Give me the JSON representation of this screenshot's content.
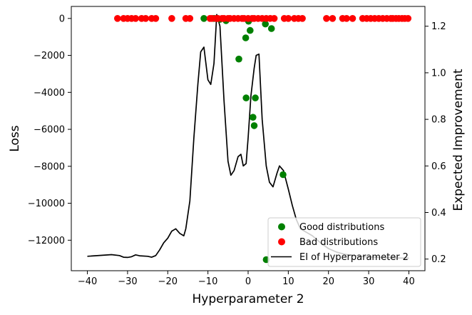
{
  "chart_data": {
    "type": "scatter",
    "xlabel": "Hyperparameter 2",
    "ylabel": "Loss",
    "y2label": "Expected Improvement",
    "xlim": [
      -44,
      44
    ],
    "ylim": [
      -13650,
      650
    ],
    "y2lim": [
      0.15,
      1.285
    ],
    "grid": false,
    "legend_position": "lower-right",
    "x_ticks": [
      -40,
      -30,
      -20,
      -10,
      0,
      10,
      20,
      30,
      40
    ],
    "x_tick_labels": [
      "−40",
      "−30",
      "−20",
      "−10",
      "0",
      "10",
      "20",
      "30",
      "40"
    ],
    "y_ticks": [
      0,
      -2000,
      -4000,
      -6000,
      -8000,
      -10000,
      -12000
    ],
    "y_tick_labels": [
      "0",
      "−2000",
      "−4000",
      "−6000",
      "−8000",
      "−10000",
      "−12000"
    ],
    "y2_ticks": [
      0.2,
      0.4,
      0.6,
      0.8,
      1.0,
      1.2
    ],
    "y2_tick_labels": [
      "0.2",
      "0.4",
      "0.6",
      "0.8",
      "1.0",
      "1.2"
    ],
    "series": [
      {
        "name": "Good distributions",
        "kind": "scatter",
        "axis": "left",
        "color": "#008000",
        "points": [
          {
            "x": -11,
            "y": 0
          },
          {
            "x": -8.5,
            "y": 0
          },
          {
            "x": -7,
            "y": -50
          },
          {
            "x": -5.5,
            "y": -120
          },
          {
            "x": -2.3,
            "y": -2200
          },
          {
            "x": -0.6,
            "y": -1050
          },
          {
            "x": 0.1,
            "y": -150
          },
          {
            "x": 0.5,
            "y": -650
          },
          {
            "x": 4.3,
            "y": -300
          },
          {
            "x": 5.8,
            "y": -550
          },
          {
            "x": -0.5,
            "y": -4300
          },
          {
            "x": 1.8,
            "y": -4300
          },
          {
            "x": 1.2,
            "y": -5350
          },
          {
            "x": 1.5,
            "y": -5800
          },
          {
            "x": 8.7,
            "y": -8450
          },
          {
            "x": 4.5,
            "y": -13050
          }
        ]
      },
      {
        "name": "Bad distributions",
        "kind": "scatter",
        "axis": "left",
        "color": "#ff0000",
        "points": [
          {
            "x": -32.5,
            "y": 0
          },
          {
            "x": -31,
            "y": 0
          },
          {
            "x": -30,
            "y": 0
          },
          {
            "x": -29,
            "y": 0
          },
          {
            "x": -28,
            "y": 0
          },
          {
            "x": -26.5,
            "y": 0
          },
          {
            "x": -25.5,
            "y": 0
          },
          {
            "x": -24,
            "y": 0
          },
          {
            "x": -23,
            "y": 0
          },
          {
            "x": -19,
            "y": 0
          },
          {
            "x": -15.5,
            "y": 0
          },
          {
            "x": -14.5,
            "y": 0
          },
          {
            "x": -9.5,
            "y": 0
          },
          {
            "x": -9,
            "y": 0
          },
          {
            "x": -8,
            "y": 0
          },
          {
            "x": -7.5,
            "y": 0
          },
          {
            "x": -6.5,
            "y": 0
          },
          {
            "x": -6,
            "y": 0
          },
          {
            "x": -5,
            "y": 0
          },
          {
            "x": -4.5,
            "y": 0
          },
          {
            "x": -3.5,
            "y": 0
          },
          {
            "x": -2.5,
            "y": 0
          },
          {
            "x": -1.5,
            "y": 0
          },
          {
            "x": -1,
            "y": 0
          },
          {
            "x": 0,
            "y": 0
          },
          {
            "x": 1,
            "y": 0
          },
          {
            "x": 1.5,
            "y": 0
          },
          {
            "x": 2.5,
            "y": 0
          },
          {
            "x": 3.5,
            "y": 0
          },
          {
            "x": 4.5,
            "y": 0
          },
          {
            "x": 5.5,
            "y": 0
          },
          {
            "x": 6.5,
            "y": 0
          },
          {
            "x": 9,
            "y": 0
          },
          {
            "x": 10,
            "y": 0
          },
          {
            "x": 11.5,
            "y": 0
          },
          {
            "x": 12.5,
            "y": 0
          },
          {
            "x": 13.5,
            "y": 0
          },
          {
            "x": 19.5,
            "y": 0
          },
          {
            "x": 21,
            "y": 0
          },
          {
            "x": 23.5,
            "y": 0
          },
          {
            "x": 24.5,
            "y": 0
          },
          {
            "x": 26,
            "y": 0
          },
          {
            "x": 28.5,
            "y": 0
          },
          {
            "x": 29.5,
            "y": 0
          },
          {
            "x": 30.5,
            "y": 0
          },
          {
            "x": 31.5,
            "y": 0
          },
          {
            "x": 32.5,
            "y": 0
          },
          {
            "x": 33.5,
            "y": 0
          },
          {
            "x": 34.5,
            "y": 0
          },
          {
            "x": 35.5,
            "y": 0
          },
          {
            "x": 36,
            "y": 0
          },
          {
            "x": 36.8,
            "y": 0
          },
          {
            "x": 37.5,
            "y": 0
          },
          {
            "x": 38.3,
            "y": 0
          },
          {
            "x": 39,
            "y": 0
          },
          {
            "x": 39.8,
            "y": 0
          }
        ]
      },
      {
        "name": "EI of Hyperparameter 2",
        "kind": "line",
        "axis": "right",
        "color": "#000000",
        "points": [
          {
            "x": -40,
            "y": 0.212
          },
          {
            "x": -34,
            "y": 0.219
          },
          {
            "x": -32,
            "y": 0.215
          },
          {
            "x": -31,
            "y": 0.208
          },
          {
            "x": -30,
            "y": 0.207
          },
          {
            "x": -29,
            "y": 0.21
          },
          {
            "x": -28,
            "y": 0.218
          },
          {
            "x": -27,
            "y": 0.214
          },
          {
            "x": -25,
            "y": 0.212
          },
          {
            "x": -24,
            "y": 0.208
          },
          {
            "x": -23,
            "y": 0.215
          },
          {
            "x": -22,
            "y": 0.24
          },
          {
            "x": -21,
            "y": 0.27
          },
          {
            "x": -20,
            "y": 0.29
          },
          {
            "x": -19,
            "y": 0.32
          },
          {
            "x": -18,
            "y": 0.33
          },
          {
            "x": -17,
            "y": 0.31
          },
          {
            "x": -16,
            "y": 0.3
          },
          {
            "x": -15.5,
            "y": 0.33
          },
          {
            "x": -14.5,
            "y": 0.45
          },
          {
            "x": -13.5,
            "y": 0.72
          },
          {
            "x": -12.5,
            "y": 0.95
          },
          {
            "x": -11.8,
            "y": 1.09
          },
          {
            "x": -11,
            "y": 1.11
          },
          {
            "x": -10,
            "y": 0.97
          },
          {
            "x": -9.3,
            "y": 0.95
          },
          {
            "x": -8.5,
            "y": 1.04
          },
          {
            "x": -7.8,
            "y": 1.25
          },
          {
            "x": -7,
            "y": 1.2
          },
          {
            "x": -6,
            "y": 0.88
          },
          {
            "x": -5,
            "y": 0.62
          },
          {
            "x": -4.3,
            "y": 0.56
          },
          {
            "x": -3.5,
            "y": 0.58
          },
          {
            "x": -2.5,
            "y": 0.64
          },
          {
            "x": -1.8,
            "y": 0.65
          },
          {
            "x": -1.2,
            "y": 0.6
          },
          {
            "x": -0.5,
            "y": 0.61
          },
          {
            "x": 0,
            "y": 0.72
          },
          {
            "x": 0.7,
            "y": 0.9
          },
          {
            "x": 1.5,
            "y": 1.02
          },
          {
            "x": 2,
            "y": 1.075
          },
          {
            "x": 2.7,
            "y": 1.08
          },
          {
            "x": 3.5,
            "y": 0.8
          },
          {
            "x": 4.5,
            "y": 0.6
          },
          {
            "x": 5.3,
            "y": 0.53
          },
          {
            "x": 6.2,
            "y": 0.51
          },
          {
            "x": 7.2,
            "y": 0.57
          },
          {
            "x": 7.8,
            "y": 0.6
          },
          {
            "x": 8.8,
            "y": 0.58
          },
          {
            "x": 10,
            "y": 0.5
          },
          {
            "x": 11,
            "y": 0.43
          },
          {
            "x": 12,
            "y": 0.37
          },
          {
            "x": 13,
            "y": 0.33
          },
          {
            "x": 14.5,
            "y": 0.315
          },
          {
            "x": 16,
            "y": 0.3
          },
          {
            "x": 18,
            "y": 0.27
          },
          {
            "x": 20,
            "y": 0.245
          },
          {
            "x": 22,
            "y": 0.23
          },
          {
            "x": 24,
            "y": 0.221
          },
          {
            "x": 26,
            "y": 0.215
          },
          {
            "x": 28,
            "y": 0.212
          },
          {
            "x": 30,
            "y": 0.209
          },
          {
            "x": 33,
            "y": 0.207
          },
          {
            "x": 36,
            "y": 0.205
          },
          {
            "x": 40,
            "y": 0.204
          }
        ]
      }
    ]
  }
}
